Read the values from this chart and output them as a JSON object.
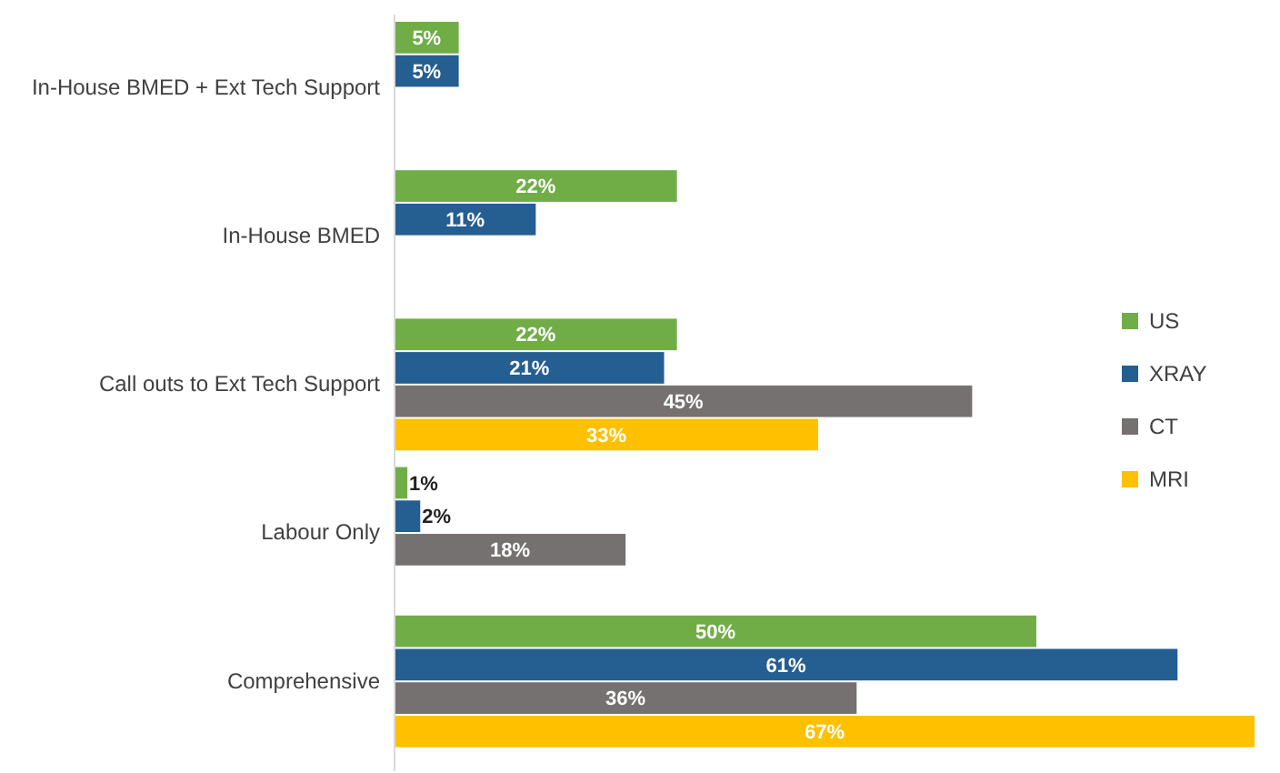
{
  "chart_data": {
    "type": "bar",
    "orientation": "horizontal",
    "categories": [
      "In-House BMED + Ext Tech Support",
      "In-House BMED",
      "Call outs to Ext Tech Support",
      "Labour Only",
      "Comprehensive"
    ],
    "series": [
      {
        "name": "US",
        "color": "#70ad47",
        "values": [
          5,
          22,
          22,
          1,
          50
        ],
        "value_labels": [
          "5%",
          "22%",
          "22%",
          "1%",
          "50%"
        ]
      },
      {
        "name": "XRAY",
        "color": "#255e91",
        "values": [
          5,
          11,
          21,
          2,
          61
        ],
        "value_labels": [
          "5%",
          "11%",
          "21%",
          "2%",
          "61%"
        ]
      },
      {
        "name": "CT",
        "color": "#767171",
        "values": [
          null,
          null,
          45,
          18,
          36
        ],
        "value_labels": [
          null,
          null,
          "45%",
          "18%",
          "36%"
        ]
      },
      {
        "name": "MRI",
        "color": "#ffc000",
        "values": [
          null,
          null,
          33,
          null,
          67
        ],
        "value_labels": [
          null,
          null,
          "33%",
          null,
          "67%"
        ]
      }
    ],
    "legend": "right"
  }
}
